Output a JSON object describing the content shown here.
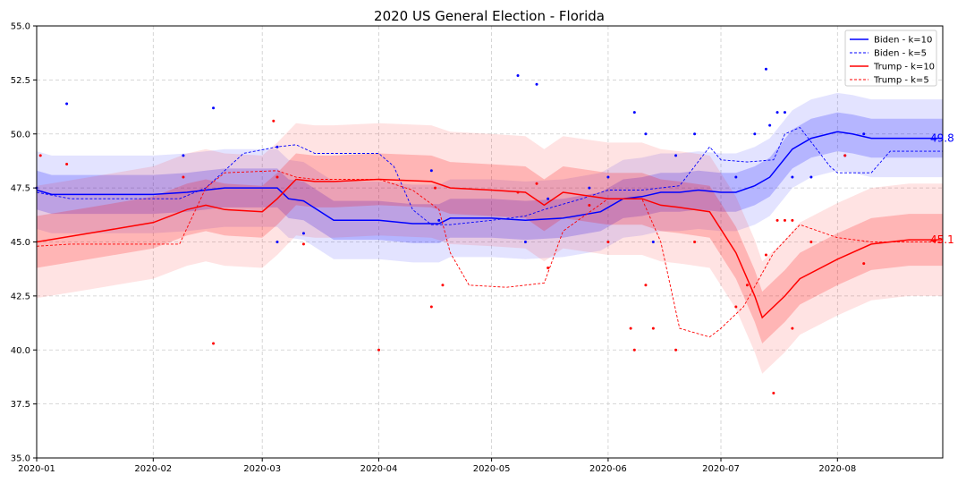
{
  "chart_data": {
    "type": "line",
    "title": "2020 US General Election - Florida",
    "xlabel": "",
    "ylabel": "",
    "x_range": [
      "2020-01-01",
      "2020-08-29"
    ],
    "ylim": [
      35.0,
      55.0
    ],
    "x_ticks": [
      "2020-01-01",
      "2020-02-01",
      "2020-03-01",
      "2020-04-01",
      "2020-05-01",
      "2020-06-01",
      "2020-07-01",
      "2020-08-01"
    ],
    "x_tick_labels": [
      "2020-01",
      "2020-02",
      "2020-03",
      "2020-04",
      "2020-05",
      "2020-06",
      "2020-07",
      "2020-08"
    ],
    "y_ticks": [
      35.0,
      37.5,
      40.0,
      42.5,
      45.0,
      47.5,
      50.0,
      52.5,
      55.0
    ],
    "y_tick_labels": [
      "35.0",
      "37.5",
      "40.0",
      "42.5",
      "45.0",
      "47.5",
      "50.0",
      "52.5",
      "55.0"
    ],
    "grid": true,
    "legend_position": "top-right",
    "colors": {
      "biden": "#0000ff",
      "trump": "#ff0000"
    },
    "series": [
      {
        "name": "Biden - k=10",
        "candidate": "biden",
        "style": "solid",
        "x": [
          "2020-01-01",
          "2020-01-05",
          "2020-01-15",
          "2020-02-01",
          "2020-02-10",
          "2020-02-15",
          "2020-02-20",
          "2020-03-05",
          "2020-03-08",
          "2020-03-12",
          "2020-03-20",
          "2020-04-01",
          "2020-04-10",
          "2020-04-17",
          "2020-04-20",
          "2020-05-01",
          "2020-05-10",
          "2020-05-20",
          "2020-05-30",
          "2020-06-05",
          "2020-06-10",
          "2020-06-15",
          "2020-06-20",
          "2020-06-25",
          "2020-07-01",
          "2020-07-05",
          "2020-07-10",
          "2020-07-14",
          "2020-07-20",
          "2020-07-25",
          "2020-08-01",
          "2020-08-05",
          "2020-08-10",
          "2020-08-20",
          "2020-08-29"
        ],
        "y": [
          47.4,
          47.2,
          47.2,
          47.2,
          47.3,
          47.4,
          47.5,
          47.5,
          47.0,
          46.9,
          46.0,
          46.0,
          45.85,
          45.85,
          46.1,
          46.1,
          46.0,
          46.1,
          46.4,
          47.0,
          47.1,
          47.3,
          47.3,
          47.4,
          47.3,
          47.3,
          47.6,
          48.0,
          49.3,
          49.8,
          50.1,
          50.0,
          49.8,
          49.8,
          49.8
        ],
        "ci_inner": 0.9,
        "ci_outer": 1.8,
        "end_label": "49.8"
      },
      {
        "name": "Biden - k=5",
        "candidate": "biden",
        "style": "dashed",
        "x": [
          "2020-01-01",
          "2020-01-10",
          "2020-02-08",
          "2020-02-15",
          "2020-02-25",
          "2020-03-05",
          "2020-03-10",
          "2020-03-15",
          "2020-04-01",
          "2020-04-05",
          "2020-04-10",
          "2020-04-15",
          "2020-04-20",
          "2020-05-01",
          "2020-05-10",
          "2020-05-15",
          "2020-05-25",
          "2020-06-01",
          "2020-06-10",
          "2020-06-20",
          "2020-06-28",
          "2020-07-01",
          "2020-07-08",
          "2020-07-15",
          "2020-07-18",
          "2020-07-22",
          "2020-07-30",
          "2020-08-01",
          "2020-08-10",
          "2020-08-15",
          "2020-08-29"
        ],
        "y": [
          47.3,
          47.0,
          47.0,
          47.5,
          49.1,
          49.4,
          49.5,
          49.1,
          49.1,
          48.5,
          46.5,
          45.8,
          45.8,
          46.0,
          46.2,
          46.5,
          47.0,
          47.4,
          47.4,
          47.6,
          49.4,
          48.8,
          48.7,
          48.8,
          50.0,
          50.3,
          48.5,
          48.2,
          48.2,
          49.2,
          49.2
        ]
      },
      {
        "name": "Trump - k=10",
        "candidate": "trump",
        "style": "solid",
        "x": [
          "2020-01-01",
          "2020-01-15",
          "2020-02-01",
          "2020-02-10",
          "2020-02-15",
          "2020-02-20",
          "2020-03-01",
          "2020-03-05",
          "2020-03-10",
          "2020-03-15",
          "2020-03-20",
          "2020-04-01",
          "2020-04-15",
          "2020-04-20",
          "2020-05-01",
          "2020-05-10",
          "2020-05-15",
          "2020-05-20",
          "2020-06-01",
          "2020-06-10",
          "2020-06-15",
          "2020-06-20",
          "2020-06-28",
          "2020-07-05",
          "2020-07-10",
          "2020-07-12",
          "2020-07-18",
          "2020-07-22",
          "2020-08-01",
          "2020-08-10",
          "2020-08-20",
          "2020-08-29"
        ],
        "y": [
          45.0,
          45.4,
          45.9,
          46.5,
          46.7,
          46.5,
          46.4,
          47.0,
          47.9,
          47.8,
          47.8,
          47.9,
          47.8,
          47.5,
          47.4,
          47.3,
          46.7,
          47.3,
          47.0,
          47.0,
          46.7,
          46.6,
          46.4,
          44.5,
          42.5,
          41.5,
          42.5,
          43.3,
          44.2,
          44.9,
          45.1,
          45.1
        ],
        "ci_inner": 1.2,
        "ci_outer": 2.6,
        "end_label": "45.1"
      },
      {
        "name": "Trump - k=5",
        "candidate": "trump",
        "style": "dashed",
        "x": [
          "2020-01-01",
          "2020-01-10",
          "2020-02-08",
          "2020-02-15",
          "2020-02-20",
          "2020-03-05",
          "2020-03-10",
          "2020-03-15",
          "2020-04-01",
          "2020-04-10",
          "2020-04-17",
          "2020-04-20",
          "2020-04-25",
          "2020-05-05",
          "2020-05-10",
          "2020-05-15",
          "2020-05-20",
          "2020-06-01",
          "2020-06-10",
          "2020-06-15",
          "2020-06-20",
          "2020-06-28",
          "2020-07-01",
          "2020-07-07",
          "2020-07-15",
          "2020-07-22",
          "2020-08-01",
          "2020-08-10",
          "2020-08-29"
        ],
        "y": [
          44.8,
          44.9,
          44.9,
          47.5,
          48.2,
          48.3,
          48.0,
          47.9,
          47.9,
          47.4,
          46.5,
          44.5,
          43.0,
          42.9,
          43.0,
          43.1,
          45.5,
          47.0,
          47.0,
          45.0,
          41.0,
          40.6,
          41.0,
          42.0,
          44.5,
          45.8,
          45.2,
          45.0,
          45.0
        ]
      }
    ],
    "scatter": {
      "biden": [
        [
          "2020-01-01",
          47.5
        ],
        [
          "2020-01-09",
          51.4
        ],
        [
          "2020-02-09",
          49.0
        ],
        [
          "2020-02-17",
          51.2
        ],
        [
          "2020-03-05",
          49.4
        ],
        [
          "2020-03-05",
          45.0
        ],
        [
          "2020-03-12",
          45.4
        ],
        [
          "2020-04-15",
          48.3
        ],
        [
          "2020-04-17",
          46.0
        ],
        [
          "2020-05-08",
          52.7
        ],
        [
          "2020-05-10",
          45.0
        ],
        [
          "2020-05-13",
          52.3
        ],
        [
          "2020-05-16",
          47.0
        ],
        [
          "2020-05-27",
          47.5
        ],
        [
          "2020-06-01",
          48.0
        ],
        [
          "2020-06-08",
          51.0
        ],
        [
          "2020-06-11",
          50.0
        ],
        [
          "2020-06-13",
          45.0
        ],
        [
          "2020-06-19",
          49.0
        ],
        [
          "2020-06-24",
          50.0
        ],
        [
          "2020-07-05",
          48.0
        ],
        [
          "2020-07-10",
          50.0
        ],
        [
          "2020-07-13",
          53.0
        ],
        [
          "2020-07-14",
          50.4
        ],
        [
          "2020-07-16",
          51.0
        ],
        [
          "2020-07-18",
          51.0
        ],
        [
          "2020-07-20",
          48.0
        ],
        [
          "2020-07-25",
          48.0
        ],
        [
          "2020-08-03",
          49.0
        ],
        [
          "2020-08-08",
          50.0
        ]
      ],
      "trump": [
        [
          "2020-01-02",
          49.0
        ],
        [
          "2020-01-09",
          48.6
        ],
        [
          "2020-02-09",
          48.0
        ],
        [
          "2020-02-17",
          40.3
        ],
        [
          "2020-03-04",
          50.6
        ],
        [
          "2020-03-05",
          48.0
        ],
        [
          "2020-03-12",
          44.9
        ],
        [
          "2020-04-01",
          40.0
        ],
        [
          "2020-04-15",
          42.0
        ],
        [
          "2020-04-16",
          47.5
        ],
        [
          "2020-04-18",
          43.0
        ],
        [
          "2020-05-08",
          47.3
        ],
        [
          "2020-05-13",
          47.7
        ],
        [
          "2020-05-16",
          43.8
        ],
        [
          "2020-05-27",
          46.7
        ],
        [
          "2020-06-01",
          45.0
        ],
        [
          "2020-06-07",
          41.0
        ],
        [
          "2020-06-08",
          40.0
        ],
        [
          "2020-06-11",
          43.0
        ],
        [
          "2020-06-13",
          41.0
        ],
        [
          "2020-06-19",
          40.0
        ],
        [
          "2020-06-24",
          45.0
        ],
        [
          "2020-07-05",
          42.0
        ],
        [
          "2020-07-08",
          43.0
        ],
        [
          "2020-07-13",
          44.4
        ],
        [
          "2020-07-15",
          38.0
        ],
        [
          "2020-07-16",
          46.0
        ],
        [
          "2020-07-18",
          46.0
        ],
        [
          "2020-07-20",
          41.0
        ],
        [
          "2020-07-20",
          46.0
        ],
        [
          "2020-07-25",
          45.0
        ],
        [
          "2020-08-03",
          49.0
        ],
        [
          "2020-08-08",
          44.0
        ]
      ]
    }
  }
}
